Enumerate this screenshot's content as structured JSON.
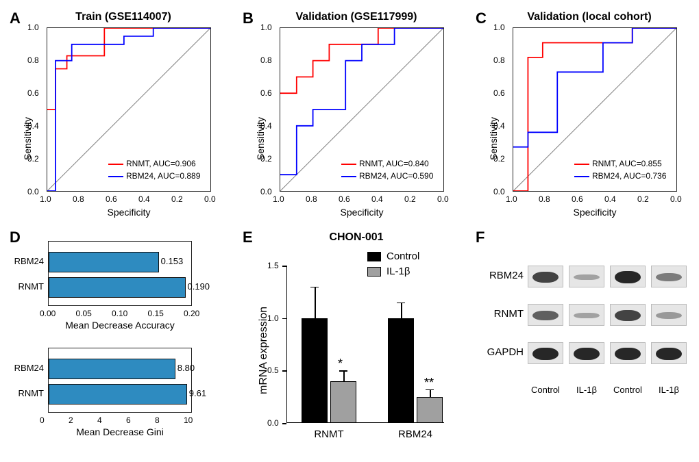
{
  "panels": {
    "A": {
      "label": "A",
      "title": "Train (GSE114007)"
    },
    "B": {
      "label": "B",
      "title": "Validation (GSE117999)"
    },
    "C": {
      "label": "C",
      "title": "Validation (local cohort)"
    },
    "D": {
      "label": "D"
    },
    "E": {
      "label": "E",
      "title": "CHON-001"
    },
    "F": {
      "label": "F"
    }
  },
  "plot_style": {
    "roc_width": 240,
    "roc_height": 240,
    "line_colors": {
      "RNMT": "#ff0000",
      "RBM24": "#0000ff"
    },
    "diag_color": "#808080",
    "bar_color": "#2e8bc0",
    "control_color": "#000000",
    "il1b_color": "#a0a0a0",
    "axis_font_size": 14,
    "tick_font_size": 12
  },
  "roc": {
    "xticks": [
      "1.0",
      "0.8",
      "0.6",
      "0.4",
      "0.2",
      "0.0"
    ],
    "yticks": [
      "0.0",
      "0.2",
      "0.4",
      "0.6",
      "0.8",
      "1.0"
    ],
    "xlabel": "Specificity",
    "ylabel": "Sensitivity",
    "A": {
      "rnmt": {
        "label": "RNMT, AUC=0.906",
        "points": [
          [
            0,
            0.5
          ],
          [
            0.05,
            0.5
          ],
          [
            0.05,
            0.75
          ],
          [
            0.12,
            0.75
          ],
          [
            0.12,
            0.83
          ],
          [
            0.35,
            0.83
          ],
          [
            0.35,
            1.0
          ],
          [
            1.0,
            1.0
          ]
        ]
      },
      "rbm24": {
        "label": "RBM24, AUC=0.889",
        "points": [
          [
            0,
            0
          ],
          [
            0.05,
            0
          ],
          [
            0.05,
            0.8
          ],
          [
            0.15,
            0.8
          ],
          [
            0.15,
            0.9
          ],
          [
            0.47,
            0.9
          ],
          [
            0.47,
            0.95
          ],
          [
            0.65,
            0.95
          ],
          [
            0.65,
            1.0
          ],
          [
            1.0,
            1.0
          ]
        ]
      }
    },
    "B": {
      "rnmt": {
        "label": "RNMT, AUC=0.840",
        "points": [
          [
            0,
            0.6
          ],
          [
            0.1,
            0.6
          ],
          [
            0.1,
            0.7
          ],
          [
            0.2,
            0.7
          ],
          [
            0.2,
            0.8
          ],
          [
            0.3,
            0.8
          ],
          [
            0.3,
            0.9
          ],
          [
            0.6,
            0.9
          ],
          [
            0.6,
            1.0
          ],
          [
            1.0,
            1.0
          ]
        ]
      },
      "rbm24": {
        "label": "RBM24, AUC=0.590",
        "points": [
          [
            0,
            0.1
          ],
          [
            0.1,
            0.1
          ],
          [
            0.1,
            0.4
          ],
          [
            0.2,
            0.4
          ],
          [
            0.2,
            0.5
          ],
          [
            0.4,
            0.5
          ],
          [
            0.4,
            0.8
          ],
          [
            0.5,
            0.8
          ],
          [
            0.5,
            0.9
          ],
          [
            0.7,
            0.9
          ],
          [
            0.7,
            1.0
          ],
          [
            1.0,
            1.0
          ]
        ]
      }
    },
    "C": {
      "rnmt": {
        "label": "RNMT, AUC=0.855",
        "points": [
          [
            0,
            0
          ],
          [
            0.09,
            0
          ],
          [
            0.09,
            0.82
          ],
          [
            0.18,
            0.82
          ],
          [
            0.18,
            0.91
          ],
          [
            0.73,
            0.91
          ],
          [
            0.73,
            1.0
          ],
          [
            1.0,
            1.0
          ]
        ]
      },
      "rbm24": {
        "label": "RBM24, AUC=0.736",
        "points": [
          [
            0,
            0.27
          ],
          [
            0.09,
            0.27
          ],
          [
            0.09,
            0.36
          ],
          [
            0.27,
            0.36
          ],
          [
            0.27,
            0.73
          ],
          [
            0.55,
            0.73
          ],
          [
            0.55,
            0.91
          ],
          [
            0.73,
            0.91
          ],
          [
            0.73,
            1.0
          ],
          [
            1.0,
            1.0
          ]
        ]
      }
    }
  },
  "panelD": {
    "accuracy": {
      "xlabel": "Mean Decrease Accuracy",
      "xticks": [
        "0.00",
        "0.05",
        "0.10",
        "0.15",
        "0.20"
      ],
      "xmax": 0.2,
      "bars": [
        {
          "label": "RBM24",
          "value": 0.153,
          "value_label": "0.153"
        },
        {
          "label": "RNMT",
          "value": 0.19,
          "value_label": "0.190"
        }
      ]
    },
    "gini": {
      "xlabel": "Mean Decrease Gini",
      "xticks": [
        "0",
        "2",
        "4",
        "6",
        "8",
        "10"
      ],
      "xmax": 10,
      "bars": [
        {
          "label": "RBM24",
          "value": 8.8,
          "value_label": "8.80"
        },
        {
          "label": "RNMT",
          "value": 9.61,
          "value_label": "9.61"
        }
      ]
    }
  },
  "panelE": {
    "ylabel": "mRNA expression",
    "yticks": [
      "0.0",
      "0.5",
      "1.0",
      "1.5"
    ],
    "ymax": 1.5,
    "legend": [
      {
        "name": "Control",
        "color": "#000000"
      },
      {
        "name": "IL-1β",
        "color": "#a0a0a0"
      }
    ],
    "groups": [
      {
        "label": "RNMT",
        "control": {
          "mean": 1.0,
          "err": 0.3
        },
        "il1b": {
          "mean": 0.4,
          "err": 0.1,
          "sig": "*"
        }
      },
      {
        "label": "RBM24",
        "control": {
          "mean": 1.0,
          "err": 0.15
        },
        "il1b": {
          "mean": 0.25,
          "err": 0.07,
          "sig": "**"
        }
      }
    ]
  },
  "panelF": {
    "rows": [
      "RBM24",
      "RNMT",
      "GAPDH"
    ],
    "lanes": [
      "Control",
      "IL-1β",
      "Control",
      "IL-1β"
    ],
    "intensity": {
      "RBM24": [
        0.7,
        0.2,
        0.85,
        0.4
      ],
      "RNMT": [
        0.55,
        0.2,
        0.7,
        0.25
      ],
      "GAPDH": [
        0.85,
        0.85,
        0.85,
        0.85
      ]
    }
  }
}
